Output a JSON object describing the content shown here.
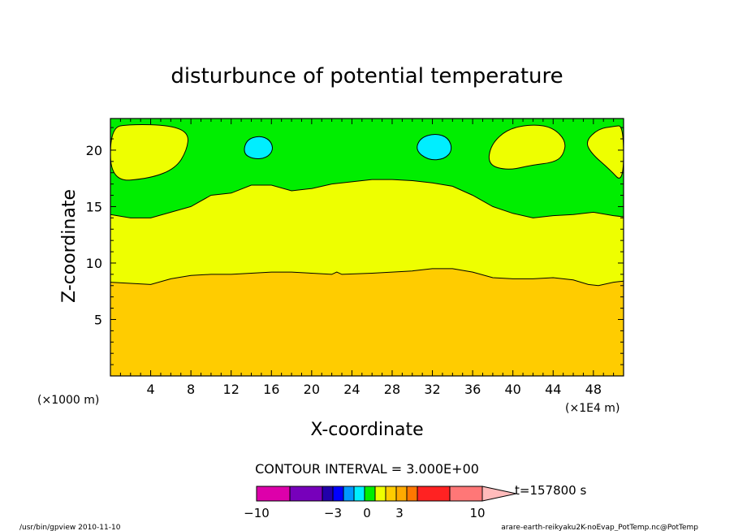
{
  "chart_data": {
    "type": "contour",
    "title": "disturbunce of potential temperature",
    "xlabel": "X-coordinate",
    "ylabel": "Z-coordinate",
    "x_unit_left": "(×1000 m)",
    "x_unit_right": "(×1E4 m)",
    "xlim": [
      0,
      51
    ],
    "ylim": [
      0,
      22.8
    ],
    "x_ticks": [
      4,
      8,
      12,
      16,
      20,
      24,
      28,
      32,
      36,
      40,
      44,
      48
    ],
    "y_ticks": [
      5,
      10,
      15,
      20
    ],
    "regions": [
      {
        "name": "band-orange",
        "color": "#ffcc00",
        "top": [
          [
            0,
            8.3
          ],
          [
            2,
            8.2
          ],
          [
            4,
            8.1
          ],
          [
            6,
            8.6
          ],
          [
            8,
            8.9
          ],
          [
            10,
            9
          ],
          [
            12,
            9
          ],
          [
            14,
            9.1
          ],
          [
            16,
            9.2
          ],
          [
            18,
            9.2
          ],
          [
            20,
            9.1
          ],
          [
            22,
            9
          ],
          [
            22.5,
            9.2
          ],
          [
            23,
            9
          ],
          [
            26,
            9.1
          ],
          [
            30,
            9.3
          ],
          [
            32,
            9.5
          ],
          [
            34,
            9.5
          ],
          [
            36,
            9.2
          ],
          [
            38,
            8.7
          ],
          [
            40,
            8.6
          ],
          [
            42,
            8.6
          ],
          [
            44,
            8.7
          ],
          [
            46,
            8.5
          ],
          [
            47.5,
            8.1
          ],
          [
            48.5,
            8
          ],
          [
            50,
            8.3
          ],
          [
            51,
            8.4
          ]
        ]
      },
      {
        "name": "band-yellow",
        "color": "#eeff00",
        "top": [
          [
            0,
            14.3
          ],
          [
            2,
            14
          ],
          [
            4,
            14
          ],
          [
            6,
            14.5
          ],
          [
            8,
            15
          ],
          [
            10,
            16
          ],
          [
            12,
            16.2
          ],
          [
            14,
            16.9
          ],
          [
            16,
            16.9
          ],
          [
            18,
            16.4
          ],
          [
            20,
            16.6
          ],
          [
            22,
            17
          ],
          [
            24,
            17.2
          ],
          [
            26,
            17.4
          ],
          [
            28,
            17.4
          ],
          [
            30,
            17.3
          ],
          [
            32,
            17.1
          ],
          [
            34,
            16.8
          ],
          [
            36,
            16
          ],
          [
            38,
            15
          ],
          [
            40,
            14.4
          ],
          [
            42,
            14
          ],
          [
            44,
            14.2
          ],
          [
            46,
            14.3
          ],
          [
            48,
            14.5
          ],
          [
            50,
            14.2
          ],
          [
            51,
            14.1
          ]
        ]
      },
      {
        "name": "band-green",
        "color": "#00ee00",
        "top": [
          [
            0,
            22.8
          ],
          [
            51,
            22.8
          ]
        ]
      }
    ],
    "blobs": [
      {
        "name": "warm-cell-left",
        "color": "#eeff00",
        "points": [
          [
            0,
            17.2
          ],
          [
            4,
            17.5
          ],
          [
            6.5,
            18.4
          ],
          [
            7.6,
            20
          ],
          [
            7.8,
            21.5
          ],
          [
            6,
            22.2
          ],
          [
            2,
            22.3
          ],
          [
            0,
            22
          ]
        ]
      },
      {
        "name": "cold-cell-1",
        "color": "#00eeff",
        "points": [
          [
            13.2,
            19.7
          ],
          [
            13.5,
            20.9
          ],
          [
            14.8,
            21.3
          ],
          [
            15.9,
            20.9
          ],
          [
            16.2,
            20
          ],
          [
            15.5,
            19.3
          ],
          [
            14.2,
            19.2
          ]
        ]
      },
      {
        "name": "cold-cell-2",
        "color": "#00eeff",
        "points": [
          [
            30.3,
            20
          ],
          [
            30.8,
            21.1
          ],
          [
            32.3,
            21.5
          ],
          [
            33.6,
            21.1
          ],
          [
            34,
            20
          ],
          [
            33.2,
            19.2
          ],
          [
            31.6,
            19.1
          ]
        ]
      },
      {
        "name": "warm-cell-center-right",
        "color": "#eeff00",
        "points": [
          [
            37.5,
            18.7
          ],
          [
            37.8,
            20.5
          ],
          [
            39.5,
            21.9
          ],
          [
            42,
            22.3
          ],
          [
            44,
            22
          ],
          [
            45.3,
            20.8
          ],
          [
            45,
            19.5
          ],
          [
            44,
            18.9
          ],
          [
            42,
            18.7
          ],
          [
            39.5,
            18.2
          ]
        ]
      },
      {
        "name": "warm-cell-right",
        "color": "#eeff00",
        "points": [
          [
            51,
            17
          ],
          [
            49.6,
            18.3
          ],
          [
            47.8,
            19.7
          ],
          [
            47.2,
            20.8
          ],
          [
            48.5,
            21.9
          ],
          [
            50,
            22.1
          ],
          [
            51,
            22.2
          ]
        ]
      }
    ],
    "color_bar": {
      "colors": [
        "#dd00aa",
        "#7700bb",
        "#2200aa",
        "#0000ff",
        "#0099ff",
        "#00eeff",
        "#00ee00",
        "#eeff00",
        "#ffcc00",
        "#ffaa00",
        "#ff7700",
        "#ff2222",
        "#ff7777",
        "#ffbbbb"
      ],
      "labels": [
        "−10",
        "−3",
        "0",
        "3",
        "10"
      ],
      "label_values": [
        -10,
        -3,
        0,
        3,
        10
      ]
    },
    "contour_interval_text": "CONTOUR INTERVAL = 3.000E+00"
  },
  "time_label": "t=157800 s",
  "footer": {
    "left": "/usr/bin/gpview  2010-11-10",
    "right": "arare-earth-reikyaku2K-noEvap_PotTemp.nc@PotTemp"
  }
}
